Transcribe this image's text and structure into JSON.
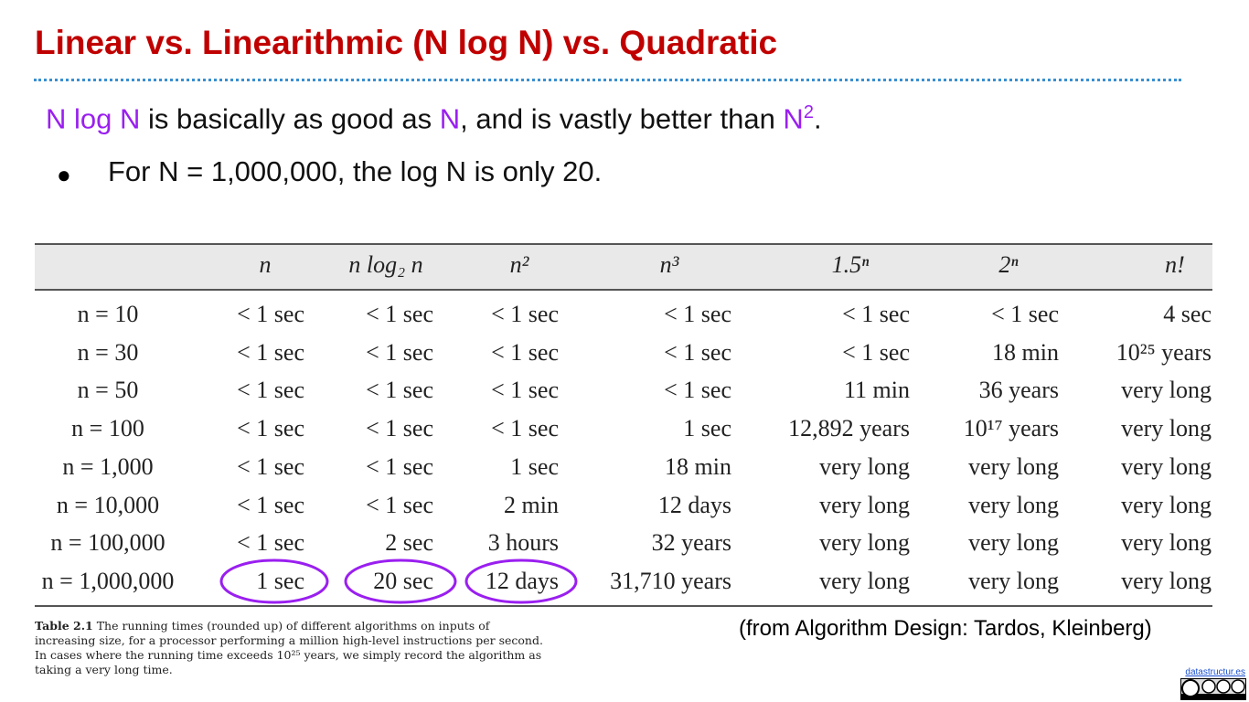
{
  "header": {
    "title": "Linear vs. Linearithmic (N log N) vs. Quadratic"
  },
  "statement": {
    "parts": [
      "N log N",
      " is basically as good as ",
      "N",
      ", and is vastly better than ",
      "N",
      "2",
      "."
    ]
  },
  "bullet": "For N = 1,000,000, the log N is only 20.",
  "table": {
    "columns": [
      "n",
      "n log₂ n",
      "n²",
      "n³",
      "1.5ⁿ",
      "2ⁿ",
      "n!"
    ],
    "rows": [
      [
        "n = 10",
        "< 1 sec",
        "< 1 sec",
        "< 1 sec",
        "< 1 sec",
        "< 1 sec",
        "< 1 sec",
        "4 sec"
      ],
      [
        "n = 30",
        "< 1 sec",
        "< 1 sec",
        "< 1 sec",
        "< 1 sec",
        "< 1 sec",
        "18 min",
        "10²⁵ years"
      ],
      [
        "n = 50",
        "< 1 sec",
        "< 1 sec",
        "< 1 sec",
        "< 1 sec",
        "11 min",
        "36 years",
        "very long"
      ],
      [
        "n = 100",
        "< 1 sec",
        "< 1 sec",
        "< 1 sec",
        "1 sec",
        "12,892 years",
        "10¹⁷ years",
        "very long"
      ],
      [
        "n = 1,000",
        "< 1 sec",
        "< 1 sec",
        "1 sec",
        "18 min",
        "very long",
        "very long",
        "very long"
      ],
      [
        "n = 10,000",
        "< 1 sec",
        "< 1 sec",
        "2 min",
        "12 days",
        "very long",
        "very long",
        "very long"
      ],
      [
        "n = 100,000",
        "< 1 sec",
        "2 sec",
        "3 hours",
        "32 years",
        "very long",
        "very long",
        "very long"
      ],
      [
        "n = 1,000,000",
        "1 sec",
        "20 sec",
        "12 days",
        "31,710 years",
        "very long",
        "very long",
        "very long"
      ]
    ]
  },
  "caption": {
    "label": "Table 2.1",
    "lines": [
      " The running times (rounded up) of different algorithms on inputs of",
      "increasing size, for a processor performing a million high-level instructions per second.",
      "In cases where the running time exceeds 10²⁵ years, we simply record the algorithm as",
      "taking a very long time."
    ]
  },
  "source": "(from Algorithm Design: Tardos, Kleinberg)",
  "footer": {
    "link": "datastructur.es"
  }
}
